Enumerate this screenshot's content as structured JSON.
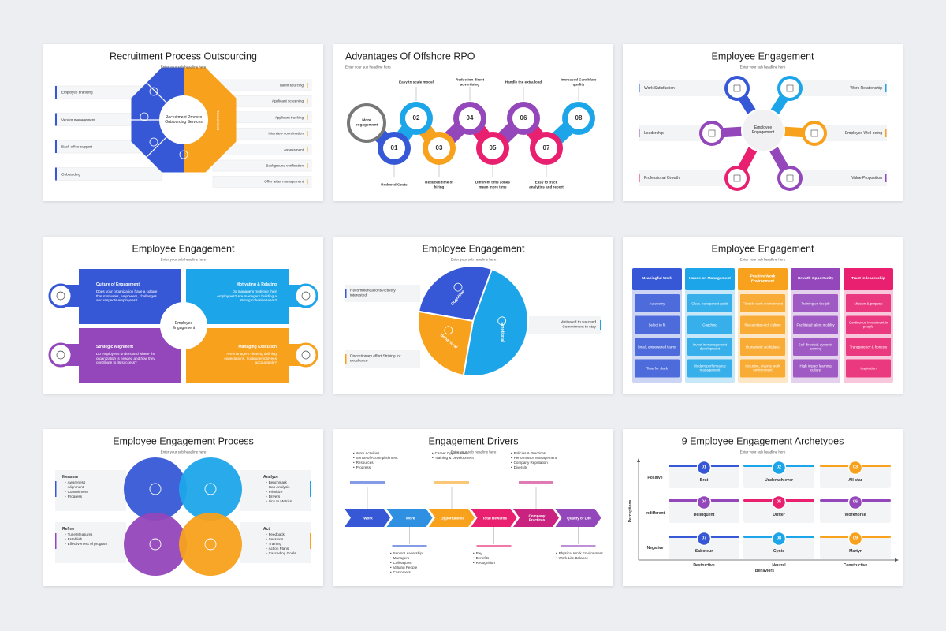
{
  "slides": [
    {
      "title": "Recruitment Process Outsourcing",
      "subtitle": "Enter your sub headline here",
      "center": "Recruitment Process Outsourcing Services",
      "band": "Recruitment",
      "left": [
        "Employee branding",
        "Vendor management",
        "Back office support",
        "Onboarding"
      ],
      "right": [
        "Talent sourcing",
        "Applicant screening",
        "Applicant tracking",
        "Interview coordination",
        "Assessment",
        "Background verification",
        "Offer letter management"
      ]
    },
    {
      "title": "Advantages Of Offshore RPO",
      "subtitle": "Enter your sub headline here",
      "start": "More engagement",
      "steps": [
        {
          "number": "01",
          "label": "Reduced Costs"
        },
        {
          "number": "02",
          "label": "Easy to scale model"
        },
        {
          "number": "03",
          "label": "Reduced time of hiring"
        },
        {
          "number": "04",
          "label": "Reduction direct advertising"
        },
        {
          "number": "05",
          "label": "Different time zones mean more time"
        },
        {
          "number": "06",
          "label": "Handle the extra load"
        },
        {
          "number": "07",
          "label": "Easy to track analytics and report"
        },
        {
          "number": "08",
          "label": "Increased Candidate quality"
        }
      ]
    },
    {
      "title": "Employee Engagement",
      "subtitle": "Enter your sub headline here",
      "center": "Employee Engagement",
      "left": [
        "Work Satisfaction",
        "Leadership",
        "Professional Growth"
      ],
      "right": [
        "Work Relationship",
        "Employee Well-being",
        "Value Proposition"
      ]
    },
    {
      "title": "Employee Engagement",
      "subtitle": "Enter your sub headline here",
      "center": "Employee Engagement",
      "quadrants": [
        {
          "title": "Culture of Engagement",
          "text": "Does your organization have a culture that motivates, empowers, challenges and respects employees?"
        },
        {
          "title": "Motivating & Relating",
          "text": "Do managers motivate their employees? Are managers building a strong cohesive team?"
        },
        {
          "title": "Strategic Alignment",
          "text": "Do employees understand where the organization is headed and how they contribute to its success?"
        },
        {
          "title": "Managing Execution",
          "text": "Are managers clearing defining expectations, holding employees accountable?"
        }
      ]
    },
    {
      "title": "Employee Engagement",
      "subtitle": "Enter your sub headline here",
      "segments": [
        "Cognitive",
        "Emotional",
        "Behavioral"
      ],
      "notes": [
        "Recommendations Actively interested",
        "Motivated to succeed Commitment to stay",
        "Discretionary effort Striving for excellence"
      ]
    },
    {
      "title": "Employee Engagement",
      "subtitle": "Enter your sub headline here",
      "columns": [
        {
          "header": "Meaningful Work",
          "items": [
            "Autonomy",
            "Select to fit",
            "Small, empowered teams",
            "Time for slack"
          ]
        },
        {
          "header": "Hands-on Management",
          "items": [
            "Clear, transparent goals",
            "Coaching",
            "Invest in management development",
            "Modern performance management"
          ]
        },
        {
          "header": "Positive Work Environment",
          "items": [
            "Flexible work environment",
            "Recognition-rich culture",
            "Humanistic workplace",
            "Inclusive, diverse work environment"
          ]
        },
        {
          "header": "Growth Opportunity",
          "items": [
            "Training on the job",
            "Facilitated talent mobility",
            "Self-directed, dynamic learning",
            "High impact learning culture"
          ]
        },
        {
          "header": "Trust in leadership",
          "items": [
            "Mission & purpose",
            "Continuous investment in people",
            "Transparency & honesty",
            "Inspiration"
          ]
        }
      ]
    },
    {
      "title": "Employee Engagement Process",
      "subtitle": "Enter your sub headline here",
      "stages": [
        {
          "name": "Measure",
          "items": [
            "Awareness",
            "Alignment",
            "Commitment",
            "Progress"
          ]
        },
        {
          "name": "Analyze",
          "items": [
            "Benchmark",
            "Gap Analysis",
            "Prioritize",
            "Drivers",
            "Link to Metrics"
          ]
        },
        {
          "name": "Refine",
          "items": [
            "Tune Measures",
            "Establish",
            "Effectiveness of program"
          ]
        },
        {
          "name": "Act",
          "items": [
            "Feedback",
            "Sessions",
            "Training",
            "Action Plans",
            "Cascading Goals"
          ]
        }
      ]
    },
    {
      "title": "Engagement Drivers",
      "subtitle": "Enter your sub headline here",
      "drivers": [
        "Work",
        "Work",
        "Opportunities",
        "Total Rewards",
        "Company Practices",
        "Quality of Life"
      ],
      "top": [
        [
          "Work Activities",
          "Sense of Accomplishment",
          "Resources",
          "Progress"
        ],
        [
          "Career Opportunities",
          "Training & Development"
        ],
        [
          "Policies & Practices",
          "Performance Management",
          "Company Reputation",
          "Diversity"
        ]
      ],
      "bottom": [
        [
          "Senior Leadership",
          "Managers",
          "Colleagues",
          "Valuing People",
          "Customers"
        ],
        [
          "Pay",
          "Benefits",
          "Recognition"
        ],
        [
          "Physical Work Environment",
          "Work-Life Balance"
        ]
      ]
    },
    {
      "title": "9 Employee Engagement Archetypes",
      "subtitle": "Enter your sub headline here",
      "rows": [
        "Positive",
        "Indifferent",
        "Negative"
      ],
      "columns": [
        "Destructive",
        "Neutral",
        "Constructive"
      ],
      "y_axis": "Perceptions",
      "x_axis": "Behaviors",
      "cells": [
        {
          "number": "01",
          "name": "Brat"
        },
        {
          "number": "02",
          "name": "Underachiever"
        },
        {
          "number": "03",
          "name": "All star"
        },
        {
          "number": "04",
          "name": "Delinquent"
        },
        {
          "number": "05",
          "name": "Drifter"
        },
        {
          "number": "06",
          "name": "Workhorse"
        },
        {
          "number": "07",
          "name": "Saboteur"
        },
        {
          "number": "08",
          "name": "Cynic"
        },
        {
          "number": "09",
          "name": "Martyr"
        }
      ]
    }
  ]
}
